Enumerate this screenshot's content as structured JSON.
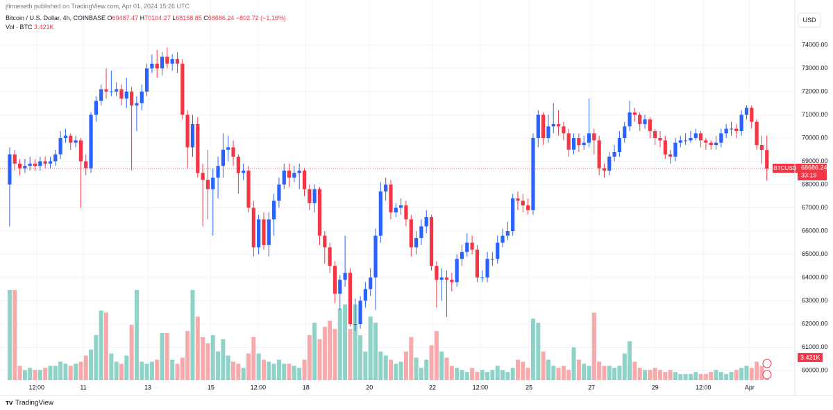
{
  "header": {
    "publisher": "jfinneseth published on TradingView.com, Apr 01, 2024 15:26 UTC",
    "symbol": "Bitcoin / U.S. Dollar, 4h, COINBASE",
    "ohlc_prefixes": [
      "O",
      "H",
      "L",
      "C"
    ],
    "change": "−802.72 (−1.16%)",
    "volume_title": "Vol · BTC",
    "currency": "USD"
  },
  "footer": {
    "logo": "TradingView"
  },
  "chart_data": {
    "type": "candlestick",
    "symbol_tag": "BTCUSD",
    "countdown": "33:19",
    "last_volume_label": "3.421K",
    "up_color": "#2962ff",
    "down_color": "#f23645",
    "volume_up_color": "#8fd3c8",
    "volume_down_color": "#f7a9ab",
    "grid": true,
    "xlim": [
      -1.9,
      154.5
    ],
    "ylim": [
      59582,
      75940
    ],
    "vlim": [
      0,
      44000
    ],
    "xticks": [
      {
        "value": 5.3,
        "label": "12:00"
      },
      {
        "value": 14.5,
        "label": "11"
      },
      {
        "value": 27.2,
        "label": "13"
      },
      {
        "value": 39.6,
        "label": "15"
      },
      {
        "value": 48.9,
        "label": "12:00"
      },
      {
        "value": 58.3,
        "label": "18"
      },
      {
        "value": 70.8,
        "label": "20"
      },
      {
        "value": 83.2,
        "label": "22"
      },
      {
        "value": 92.6,
        "label": "12:00"
      },
      {
        "value": 102.2,
        "label": "25"
      },
      {
        "value": 114.5,
        "label": "27"
      },
      {
        "value": 127,
        "label": "29"
      },
      {
        "value": 136.5,
        "label": "12:00"
      },
      {
        "value": 145.6,
        "label": "Apr"
      }
    ],
    "yticks": [
      {
        "value": 60000,
        "label": "60000.00"
      },
      {
        "value": 61000,
        "label": "61000.00"
      },
      {
        "value": 62000,
        "label": "62000.00"
      },
      {
        "value": 63000,
        "label": "63000.00"
      },
      {
        "value": 64000,
        "label": "64000.00"
      },
      {
        "value": 65000,
        "label": "65000.00"
      },
      {
        "value": 66000,
        "label": "66000.00"
      },
      {
        "value": 67000,
        "label": "67000.00"
      },
      {
        "value": 68000,
        "label": "68000.00"
      },
      {
        "value": 69000,
        "label": "69000.00"
      },
      {
        "value": 70000,
        "label": "70000.00"
      },
      {
        "value": 71000,
        "label": "71000.00"
      },
      {
        "value": 72000,
        "label": "72000.00"
      },
      {
        "value": 73000,
        "label": "73000.00"
      },
      {
        "value": 74000,
        "label": "74000.00"
      }
    ],
    "open": [
      68000,
      69300,
      68900,
      68700,
      68800,
      68900,
      68800,
      69000,
      68900,
      69000,
      69300,
      70000,
      70100,
      69800,
      69900,
      69000,
      68700,
      71000,
      71600,
      72100,
      72000,
      72000,
      72100,
      71700,
      72000,
      71400,
      71500,
      72000,
      73000,
      73200,
      73000,
      73500,
      73200,
      73400,
      73200,
      71000,
      69600,
      70600,
      68500,
      68200,
      67800,
      68300,
      68800,
      69500,
      69600,
      69200,
      68500,
      68600,
      67000,
      65300,
      66500,
      65400,
      66500,
      67300,
      68000,
      68600,
      68300,
      68500,
      68600,
      67800,
      67200,
      67800,
      65800,
      65300,
      64500,
      63300,
      63900,
      64200,
      62000,
      62000,
      63000,
      63500,
      64000,
      65800,
      67700,
      68000,
      66800,
      67000,
      67100,
      66500,
      65300,
      65700,
      66200,
      66600,
      64500,
      63900,
      64000,
      63900,
      63800,
      64800,
      65100,
      65500,
      65200,
      64000,
      64000,
      64800,
      64800,
      65500,
      65800,
      66000,
      67400,
      67300,
      67100,
      66900,
      70000,
      71000,
      70000,
      70500,
      70600,
      70500,
      70200,
      69500,
      70000,
      69700,
      69800,
      70200,
      69900,
      68700,
      68600,
      69200,
      69400,
      70000,
      70500,
      71100,
      71000,
      70600,
      70800,
      70300,
      70000,
      69900,
      69300,
      69200,
      69800,
      69900,
      69900,
      70000,
      70200,
      69900,
      69800,
      69700,
      69800,
      70200,
      70400,
      70400,
      70300,
      71000,
      71300,
      70700,
      69700,
      69487.47
    ],
    "high": [
      69600,
      69500,
      69100,
      69100,
      69200,
      69100,
      69200,
      69200,
      69200,
      69500,
      70300,
      70400,
      70200,
      70100,
      70000,
      69300,
      71100,
      71800,
      72300,
      73000,
      72900,
      72400,
      72300,
      72600,
      72200,
      71800,
      72300,
      73200,
      73600,
      73800,
      73700,
      73900,
      73600,
      73700,
      73400,
      71200,
      71000,
      70900,
      68900,
      69500,
      68700,
      69200,
      70200,
      70100,
      69900,
      69300,
      68900,
      68800,
      67300,
      66700,
      66800,
      66800,
      67600,
      68300,
      68900,
      68900,
      68800,
      68900,
      68700,
      68000,
      68000,
      67900,
      66000,
      65500,
      64700,
      64100,
      65800,
      64400,
      63100,
      63200,
      63800,
      64400,
      66100,
      68100,
      68300,
      68200,
      67200,
      67400,
      67300,
      66700,
      66000,
      66500,
      66900,
      66700,
      64700,
      64400,
      64300,
      64200,
      65000,
      65400,
      65900,
      65800,
      65400,
      64300,
      65100,
      65100,
      65800,
      66100,
      66400,
      67600,
      67700,
      67600,
      67400,
      70200,
      71200,
      71100,
      71000,
      71500,
      71200,
      70700,
      70400,
      70200,
      70200,
      70100,
      71700,
      70400,
      70100,
      68900,
      69400,
      69700,
      70300,
      70700,
      71600,
      71300,
      71100,
      71000,
      70900,
      70400,
      70300,
      70100,
      69500,
      70000,
      70100,
      70200,
      70300,
      70400,
      70300,
      70000,
      69900,
      70100,
      70400,
      70600,
      70700,
      70600,
      71200,
      71400,
      71400,
      70800,
      70100,
      70104.27
    ],
    "low": [
      66200,
      68600,
      68400,
      68500,
      68600,
      68600,
      68600,
      68700,
      68700,
      68800,
      69100,
      69800,
      69500,
      69600,
      67000,
      68400,
      68500,
      70700,
      71400,
      71700,
      71800,
      71800,
      71400,
      71300,
      68600,
      70300,
      71200,
      71800,
      72800,
      72600,
      72700,
      73000,
      72900,
      72800,
      70800,
      68700,
      69200,
      68300,
      66200,
      66500,
      65800,
      67400,
      68300,
      69000,
      68800,
      67600,
      68200,
      66800,
      64900,
      65000,
      65200,
      64900,
      65800,
      67000,
      67800,
      67900,
      68100,
      67800,
      67500,
      66900,
      66800,
      65400,
      64600,
      64200,
      62900,
      62600,
      63600,
      61900,
      61700,
      61800,
      62700,
      63200,
      62600,
      65500,
      67300,
      66500,
      66600,
      66700,
      66200,
      64900,
      65000,
      65400,
      65900,
      64300,
      62700,
      63000,
      62300,
      63400,
      63600,
      64500,
      64900,
      65000,
      63800,
      63800,
      63800,
      64500,
      64600,
      65300,
      65600,
      65800,
      66900,
      66800,
      66700,
      66700,
      69600,
      69700,
      69800,
      70200,
      70100,
      69900,
      69200,
      69300,
      69400,
      69500,
      69600,
      69300,
      68400,
      68300,
      68400,
      69000,
      69200,
      69800,
      70300,
      70700,
      70300,
      70400,
      70000,
      69700,
      69600,
      69100,
      68900,
      69000,
      69600,
      69700,
      69800,
      69900,
      69600,
      69500,
      69500,
      69500,
      69600,
      70000,
      70100,
      70000,
      70100,
      70800,
      70400,
      69500,
      68900,
      68168.85
    ],
    "close": [
      69300,
      68900,
      68700,
      68800,
      68900,
      68800,
      69000,
      68900,
      69000,
      69300,
      70000,
      70100,
      69800,
      69900,
      69000,
      68700,
      71000,
      71600,
      72100,
      72000,
      72000,
      72100,
      71700,
      72000,
      71400,
      71500,
      72000,
      73000,
      73200,
      73000,
      73500,
      73200,
      73400,
      73200,
      71000,
      69600,
      70600,
      68500,
      68200,
      67800,
      68300,
      68800,
      69500,
      69600,
      69200,
      68500,
      68600,
      67000,
      65300,
      66500,
      65400,
      66500,
      67300,
      68000,
      68600,
      68300,
      68500,
      68600,
      67800,
      67200,
      67800,
      65800,
      65300,
      64500,
      63300,
      63900,
      64200,
      62000,
      62000,
      63000,
      63500,
      64000,
      65800,
      67700,
      68000,
      66800,
      67000,
      67100,
      66500,
      65300,
      65700,
      66200,
      66600,
      64500,
      63900,
      64000,
      63900,
      63800,
      64800,
      65100,
      65500,
      65200,
      64000,
      64000,
      64800,
      64800,
      65500,
      65800,
      66000,
      67400,
      67300,
      67100,
      66900,
      70000,
      71000,
      70000,
      70500,
      70600,
      70500,
      70200,
      69500,
      70000,
      69700,
      69800,
      70200,
      69900,
      68700,
      68600,
      69200,
      69400,
      70000,
      70500,
      71100,
      71000,
      70600,
      70800,
      70300,
      70000,
      69900,
      69300,
      69200,
      69800,
      69900,
      69900,
      70000,
      70200,
      69900,
      69800,
      69700,
      69800,
      70200,
      70400,
      70400,
      70300,
      71000,
      71300,
      70700,
      69700,
      69487.47,
      68686.24
    ],
    "volume": [
      44000,
      44000,
      7000,
      5000,
      6000,
      5000,
      5000,
      6000,
      7000,
      7000,
      9000,
      8000,
      7000,
      8000,
      9000,
      12000,
      15000,
      22000,
      34000,
      33000,
      13000,
      9000,
      8000,
      12000,
      27000,
      44000,
      9000,
      8000,
      9000,
      10000,
      23000,
      23000,
      10000,
      8000,
      11000,
      24000,
      44000,
      31000,
      21000,
      18000,
      22000,
      14000,
      20000,
      12000,
      9000,
      8000,
      6000,
      13000,
      21000,
      13000,
      10000,
      9000,
      8000,
      10000,
      8000,
      8000,
      7000,
      6000,
      10000,
      22000,
      28000,
      20000,
      26000,
      29000,
      25000,
      35000,
      37000,
      25000,
      37000,
      22000,
      14000,
      31000,
      28000,
      14000,
      12000,
      10000,
      8000,
      9000,
      14000,
      21000,
      11000,
      6000,
      10000,
      17000,
      24000,
      14000,
      11000,
      7000,
      6000,
      5000,
      4000,
      6000,
      4000,
      5000,
      4000,
      5000,
      7000,
      5000,
      4000,
      6000,
      10000,
      9000,
      6000,
      30000,
      28000,
      14000,
      10000,
      7000,
      6000,
      7000,
      5000,
      16000,
      10000,
      8000,
      7000,
      33000,
      9000,
      7000,
      7000,
      6000,
      7000,
      13000,
      19000,
      9000,
      6000,
      5000,
      5000,
      6000,
      5000,
      4000,
      5000,
      4000,
      3000,
      3000,
      3000,
      4000,
      3000,
      3000,
      4000,
      5000,
      4000,
      3000,
      4000,
      5000,
      6000,
      7000,
      6000,
      9000,
      7000,
      3421
    ]
  }
}
